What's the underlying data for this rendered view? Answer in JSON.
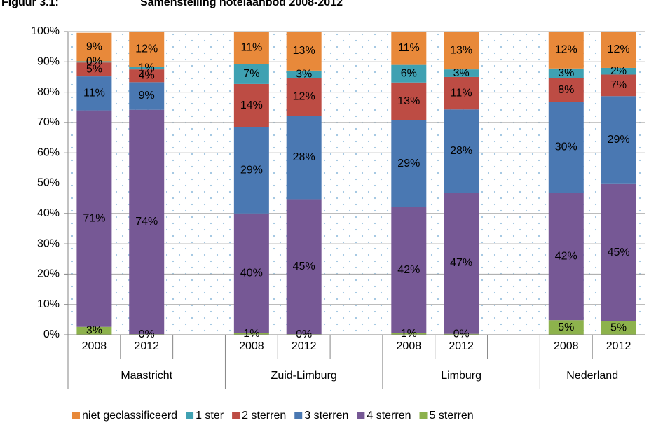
{
  "chart_data": {
    "type": "stacked_bar",
    "figure_label": "Figuur 3.1:",
    "title": "Samenstelling hotelaanbod 2008-2012",
    "categories": [
      "2008",
      "2012",
      null,
      "2008",
      "2012",
      null,
      "2008",
      "2012",
      null,
      "2008",
      "2012"
    ],
    "groups": [
      "Maastricht",
      "Zuid-Limburg",
      "Limburg",
      "Nederland"
    ],
    "series": [
      {
        "name": "niet geclassificeerd",
        "color": "#e8893a",
        "values": [
          9.4,
          11.7,
          null,
          10.8,
          12.9,
          null,
          11.0,
          12.5,
          null,
          12.2,
          12.0
        ],
        "value_labels": [
          "9%",
          "12%",
          null,
          "11%",
          "13%",
          null,
          "11%",
          "13%",
          null,
          "12%",
          "12%"
        ]
      },
      {
        "name": "1 ster",
        "color": "#3fa1b2",
        "values": [
          0.4,
          0.8,
          null,
          6.5,
          2.5,
          null,
          5.8,
          2.5,
          null,
          3.2,
          2.2
        ],
        "value_labels": [
          "0%",
          "1%",
          null,
          "7%",
          "3%",
          null,
          "6%",
          "3%",
          null,
          "3%",
          "2%"
        ]
      },
      {
        "name": "2 sterren",
        "color": "#bd4c44",
        "values": [
          4.6,
          4.2,
          null,
          14.2,
          12.4,
          null,
          12.5,
          10.7,
          null,
          7.8,
          7.1
        ],
        "value_labels": [
          "5%",
          "4%",
          null,
          "14%",
          "12%",
          null,
          "13%",
          "11%",
          null,
          "8%",
          "7%"
        ]
      },
      {
        "name": "3 sterren",
        "color": "#4a78b2",
        "values": [
          11.2,
          9.1,
          null,
          28.5,
          27.5,
          null,
          28.5,
          27.5,
          null,
          30.0,
          29.0
        ],
        "value_labels": [
          "11%",
          "9%",
          null,
          "29%",
          "28%",
          null,
          "29%",
          "28%",
          null,
          "30%",
          "29%"
        ]
      },
      {
        "name": "4 sterren",
        "color": "#765895",
        "values": [
          71.4,
          74.0,
          null,
          39.5,
          44.5,
          null,
          41.7,
          46.5,
          null,
          42.0,
          45.2
        ],
        "value_labels": [
          "71%",
          "74%",
          null,
          "40%",
          "45%",
          null,
          "42%",
          "47%",
          null,
          "42%",
          "45%"
        ]
      },
      {
        "name": "5 sterren",
        "color": "#8db24c",
        "values": [
          2.6,
          0.2,
          null,
          0.5,
          0.2,
          null,
          0.5,
          0.3,
          null,
          4.8,
          4.5
        ],
        "value_labels": [
          "3%",
          "0%",
          null,
          "1%",
          "0%",
          null,
          "1%",
          "0%",
          null,
          "5%",
          "5%"
        ]
      }
    ],
    "ylim": [
      0,
      100
    ],
    "yticks": [
      {
        "value": 0,
        "label": "0%"
      },
      {
        "value": 10,
        "label": "10%"
      },
      {
        "value": 20,
        "label": "20%"
      },
      {
        "value": 30,
        "label": "30%"
      },
      {
        "value": 40,
        "label": "40%"
      },
      {
        "value": 50,
        "label": "50%"
      },
      {
        "value": 60,
        "label": "60%"
      },
      {
        "value": 70,
        "label": "70%"
      },
      {
        "value": 80,
        "label": "80%"
      },
      {
        "value": 90,
        "label": "90%"
      },
      {
        "value": 100,
        "label": "100%"
      }
    ],
    "grid": true,
    "legend": "bottom"
  }
}
